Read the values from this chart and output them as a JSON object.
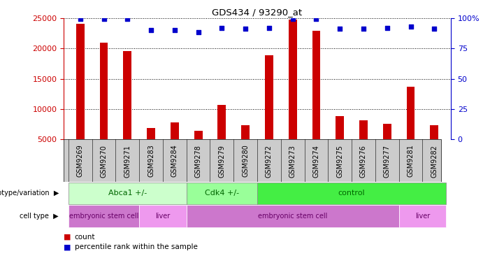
{
  "title": "GDS434 / 93290_at",
  "samples": [
    "GSM9269",
    "GSM9270",
    "GSM9271",
    "GSM9283",
    "GSM9284",
    "GSM9278",
    "GSM9279",
    "GSM9280",
    "GSM9272",
    "GSM9273",
    "GSM9274",
    "GSM9275",
    "GSM9276",
    "GSM9277",
    "GSM9281",
    "GSM9282"
  ],
  "counts": [
    24000,
    20900,
    19500,
    6900,
    7800,
    6400,
    10700,
    7300,
    18900,
    24700,
    22900,
    8900,
    8200,
    7600,
    13700,
    7300
  ],
  "percentile_ranks": [
    99,
    99,
    99,
    90,
    90,
    88,
    92,
    91,
    92,
    99,
    99,
    91,
    91,
    92,
    93,
    91
  ],
  "ylim_left": [
    5000,
    25000
  ],
  "ylim_right": [
    0,
    100
  ],
  "yticks_left": [
    5000,
    10000,
    15000,
    20000,
    25000
  ],
  "yticks_right": [
    0,
    25,
    50,
    75,
    100
  ],
  "bar_color": "#cc0000",
  "dot_color": "#0000cc",
  "grid_color": "#000000",
  "left_tick_color": "#cc0000",
  "right_tick_color": "#0000cc",
  "genotype_groups": [
    {
      "label": "Abca1 +/-",
      "start": 0,
      "end": 5,
      "color": "#ccffcc"
    },
    {
      "label": "Cdk4 +/-",
      "start": 5,
      "end": 8,
      "color": "#99ff99"
    },
    {
      "label": "control",
      "start": 8,
      "end": 16,
      "color": "#44ee44"
    }
  ],
  "celltype_groups": [
    {
      "label": "embryonic stem cell",
      "start": 0,
      "end": 3,
      "color": "#cc77cc"
    },
    {
      "label": "liver",
      "start": 3,
      "end": 5,
      "color": "#ee99ee"
    },
    {
      "label": "embryonic stem cell",
      "start": 5,
      "end": 14,
      "color": "#cc77cc"
    },
    {
      "label": "liver",
      "start": 14,
      "end": 16,
      "color": "#ee99ee"
    }
  ],
  "label_color_geno": "#006600",
  "label_color_cell": "#660066",
  "legend_count_color": "#cc0000",
  "legend_dot_color": "#0000cc",
  "xticklabel_bg": "#cccccc"
}
